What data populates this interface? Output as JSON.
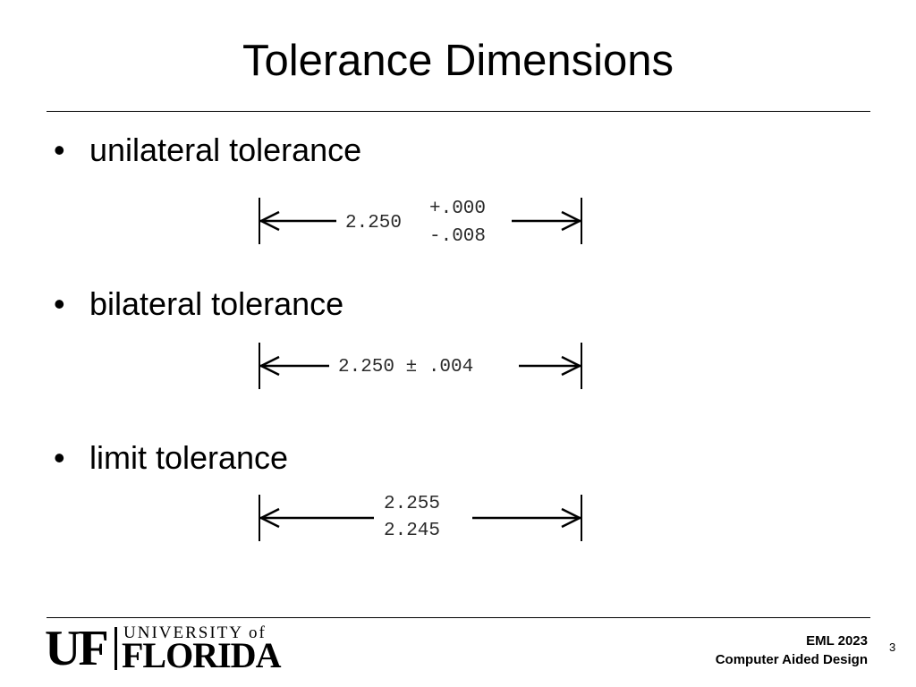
{
  "slide": {
    "title": "Tolerance Dimensions",
    "page_number": "3"
  },
  "bullets": [
    {
      "marker": "•",
      "label": "unilateral tolerance",
      "dimension": {
        "nominal": "2.250",
        "upper_deviation": "+.000",
        "lower_deviation": "-.008"
      }
    },
    {
      "marker": "•",
      "label": "bilateral tolerance",
      "dimension": {
        "text": "2.250 ± .004"
      }
    },
    {
      "marker": "•",
      "label": "limit tolerance",
      "dimension": {
        "upper_limit": "2.255",
        "lower_limit": "2.245"
      }
    }
  ],
  "footer": {
    "logo": {
      "mark": "UF",
      "line1": "UNIVERSITY of",
      "line2": "FLORIDA"
    },
    "course_code": "EML 2023",
    "course_name": "Computer Aided Design"
  }
}
